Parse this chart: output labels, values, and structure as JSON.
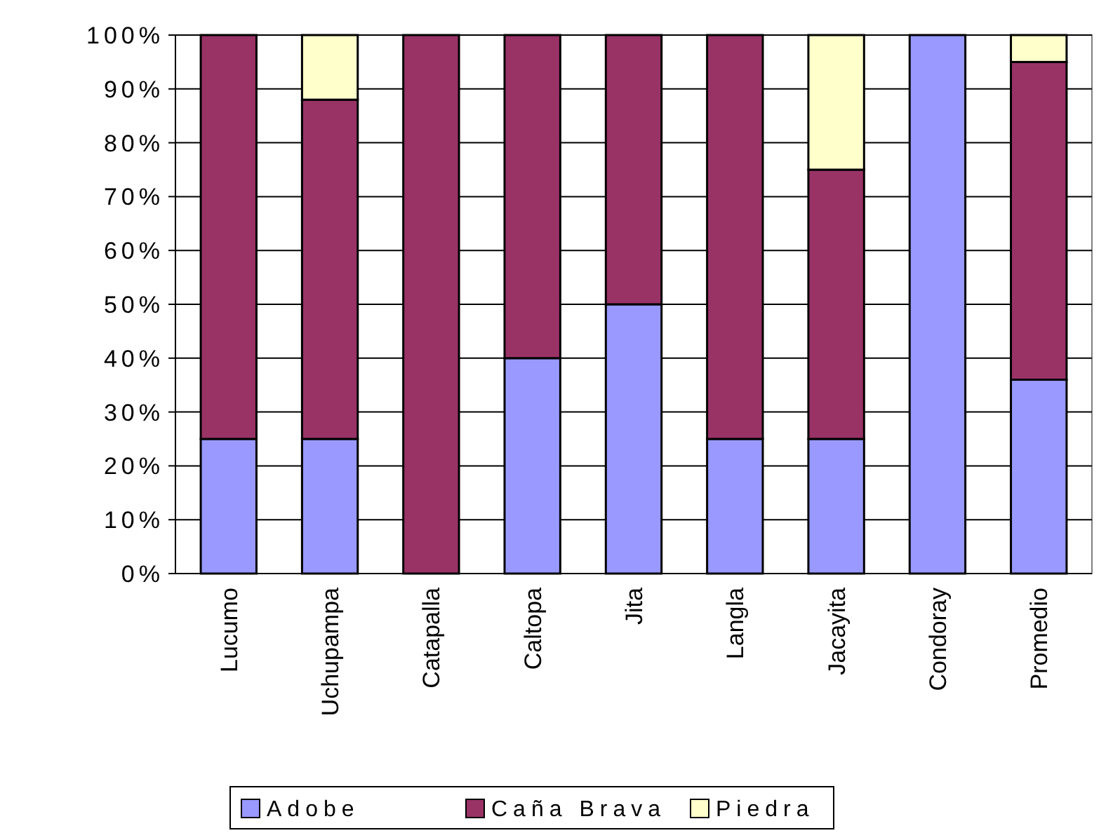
{
  "chart_data": {
    "type": "bar",
    "stacked": true,
    "categories": [
      "Lucumo",
      "Uchupampa",
      "Catapalla",
      "Caltopa",
      "Jita",
      "Langla",
      "Jacayita",
      "Condoray",
      "Promedio"
    ],
    "series": [
      {
        "name": "Adobe",
        "color": "#9999ff",
        "values": [
          25,
          25,
          0,
          40,
          50,
          25,
          25,
          100,
          36
        ]
      },
      {
        "name": "Caña Brava",
        "color": "#993366",
        "values": [
          75,
          63,
          100,
          60,
          50,
          75,
          50,
          0,
          59
        ]
      },
      {
        "name": "Piedra",
        "color": "#ffffcc",
        "values": [
          0,
          12,
          0,
          0,
          0,
          0,
          25,
          0,
          5
        ]
      }
    ],
    "ylim": [
      0,
      100
    ],
    "yticks": [
      {
        "value": 0,
        "label": "0%"
      },
      {
        "value": 10,
        "label": "10%"
      },
      {
        "value": 20,
        "label": "20%"
      },
      {
        "value": 30,
        "label": "30%"
      },
      {
        "value": 40,
        "label": "40%"
      },
      {
        "value": 50,
        "label": "50%"
      },
      {
        "value": 60,
        "label": "60%"
      },
      {
        "value": 70,
        "label": "70%"
      },
      {
        "value": 80,
        "label": "80%"
      },
      {
        "value": 90,
        "label": "90%"
      },
      {
        "value": 100,
        "label": "100%"
      }
    ],
    "grid": "y",
    "legend": "bottom"
  }
}
